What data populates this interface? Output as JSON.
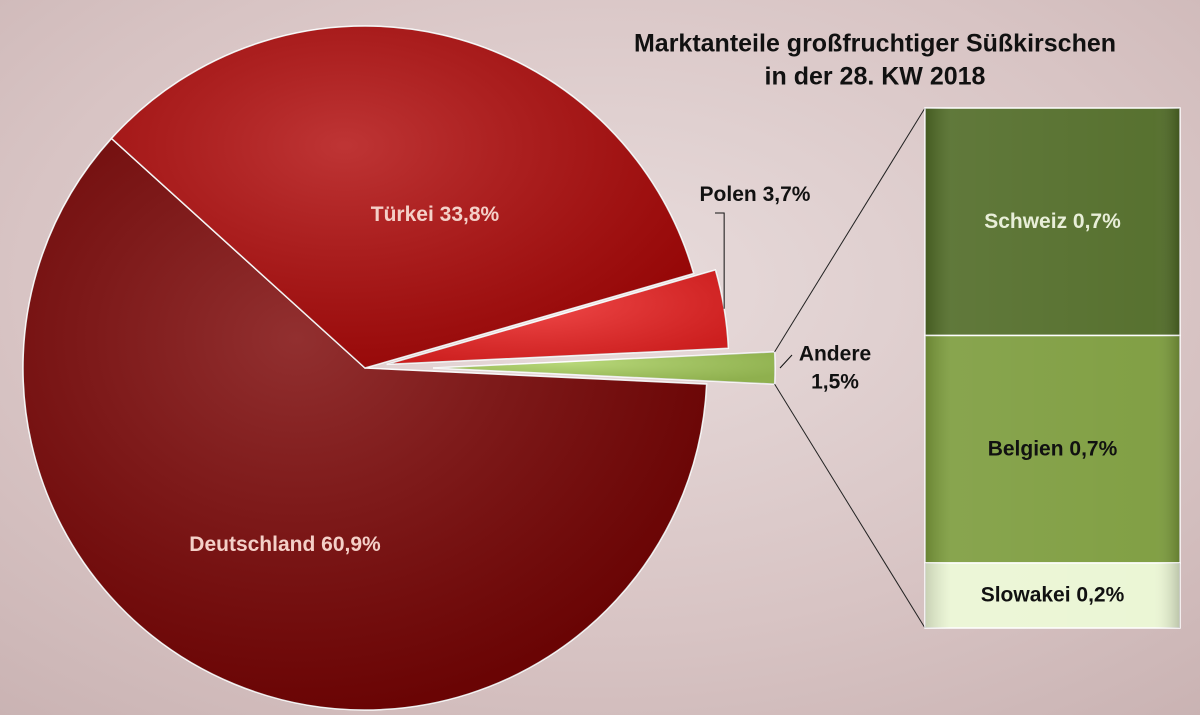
{
  "chart_data": {
    "type": "pie-of-bar",
    "title": [
      "Marktanteile großfruchtiger Süßkirschen",
      "in der 28. KW 2018"
    ],
    "categories": [
      "Deutschland",
      "Türkei",
      "Polen",
      "Andere"
    ],
    "values": [
      60.9,
      33.8,
      3.7,
      1.5
    ],
    "value_labels": [
      "60,9%",
      "33,8%",
      "3,7%",
      "1,5%"
    ],
    "colors": [
      "#7a0202",
      "#b00808",
      "#f02424",
      "#a8cf5c"
    ],
    "breakdown": {
      "categories": [
        "Schweiz",
        "Belgien",
        "Slowakei"
      ],
      "values": [
        0.7,
        0.7,
        0.2
      ],
      "value_labels": [
        "0,7%",
        "0,7%",
        "0,2%"
      ],
      "colors": [
        "#4f6a25",
        "#7b9b3b",
        "#eaf5d3"
      ]
    }
  }
}
